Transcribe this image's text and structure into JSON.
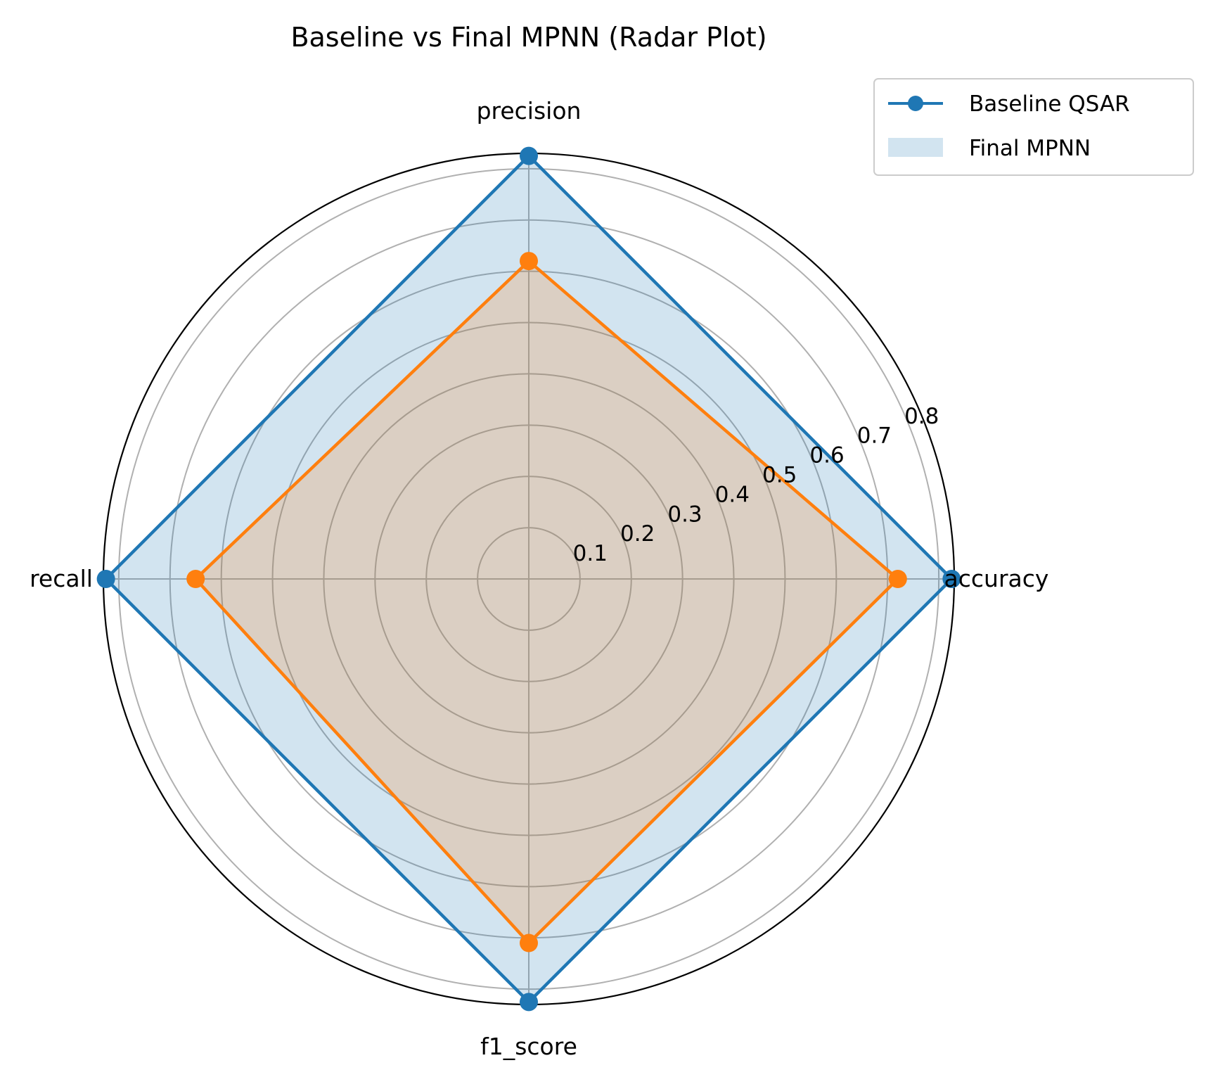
{
  "chart_data": {
    "type": "radar",
    "title": "Baseline vs Final MPNN (Radar Plot)",
    "categories": [
      "accuracy",
      "precision",
      "recall",
      "f1_score"
    ],
    "rlim": [
      0,
      0.83
    ],
    "rticks": [
      0.1,
      0.2,
      0.3,
      0.4,
      0.5,
      0.6,
      0.7,
      0.8
    ],
    "rtick_labels": [
      "0.1",
      "0.2",
      "0.3",
      "0.4",
      "0.5",
      "0.6",
      "0.7",
      "0.8"
    ],
    "grid": true,
    "legend_position": "top-right",
    "legend": [
      "Baseline QSAR",
      "Final MPNN"
    ],
    "series": [
      {
        "values": [
          0.825,
          0.825,
          0.825,
          0.825
        ],
        "line_color": "#1f77b4",
        "fill_color": "#1f77b4",
        "marker": "circle"
      },
      {
        "values": [
          0.72,
          0.62,
          0.65,
          0.71
        ],
        "line_color": "#ff7f0e",
        "fill_color": "#ff7f0e",
        "marker": "circle"
      }
    ]
  }
}
